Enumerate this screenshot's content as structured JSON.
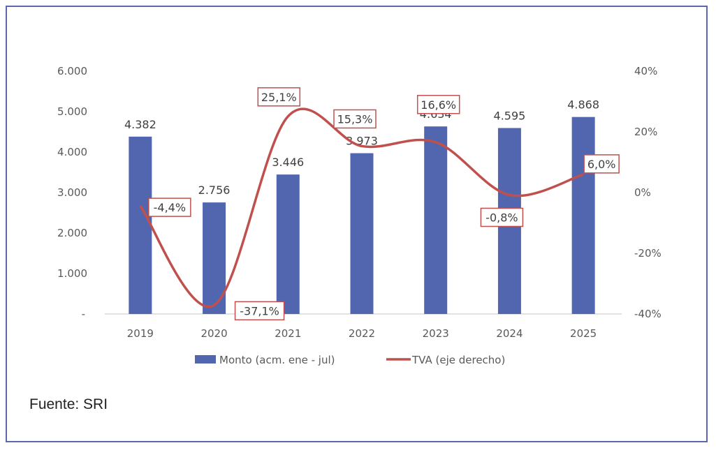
{
  "chart_data": {
    "type": "bar+line",
    "categories": [
      "2019",
      "2020",
      "2021",
      "2022",
      "2023",
      "2024",
      "2025"
    ],
    "series": [
      {
        "name": "Monto (acm. ene - jul)",
        "type": "bar",
        "axis": "left",
        "color": "#5266b0",
        "values": [
          4382,
          2756,
          3446,
          3973,
          4634,
          4595,
          4868
        ],
        "labels": [
          "4.382",
          "2.756",
          "3.446",
          "3.973",
          "4.634",
          "4.595",
          "4.868"
        ]
      },
      {
        "name": "TVA (eje derecho)",
        "type": "line",
        "axis": "right",
        "color": "#c0504d",
        "smooth": true,
        "values": [
          -4.4,
          -37.1,
          25.1,
          15.3,
          16.6,
          -0.8,
          6.0
        ],
        "labels": [
          "-4,4%",
          "-37,1%",
          "25,1%",
          "15,3%",
          "16,6%",
          "-0,8%",
          "6,0%"
        ]
      }
    ],
    "left_axis": {
      "range": [
        0,
        6000
      ],
      "ticks": [
        "-",
        "1.000",
        "2.000",
        "3.000",
        "4.000",
        "5.000",
        "6.000"
      ]
    },
    "right_axis": {
      "range": [
        -40,
        40
      ],
      "ticks": [
        "-40%",
        "-20%",
        "0%",
        "20%",
        "40%"
      ]
    },
    "grid": false,
    "legend": "bottom",
    "label_box_color": "#c0504d"
  },
  "source": "Fuente: SRI"
}
